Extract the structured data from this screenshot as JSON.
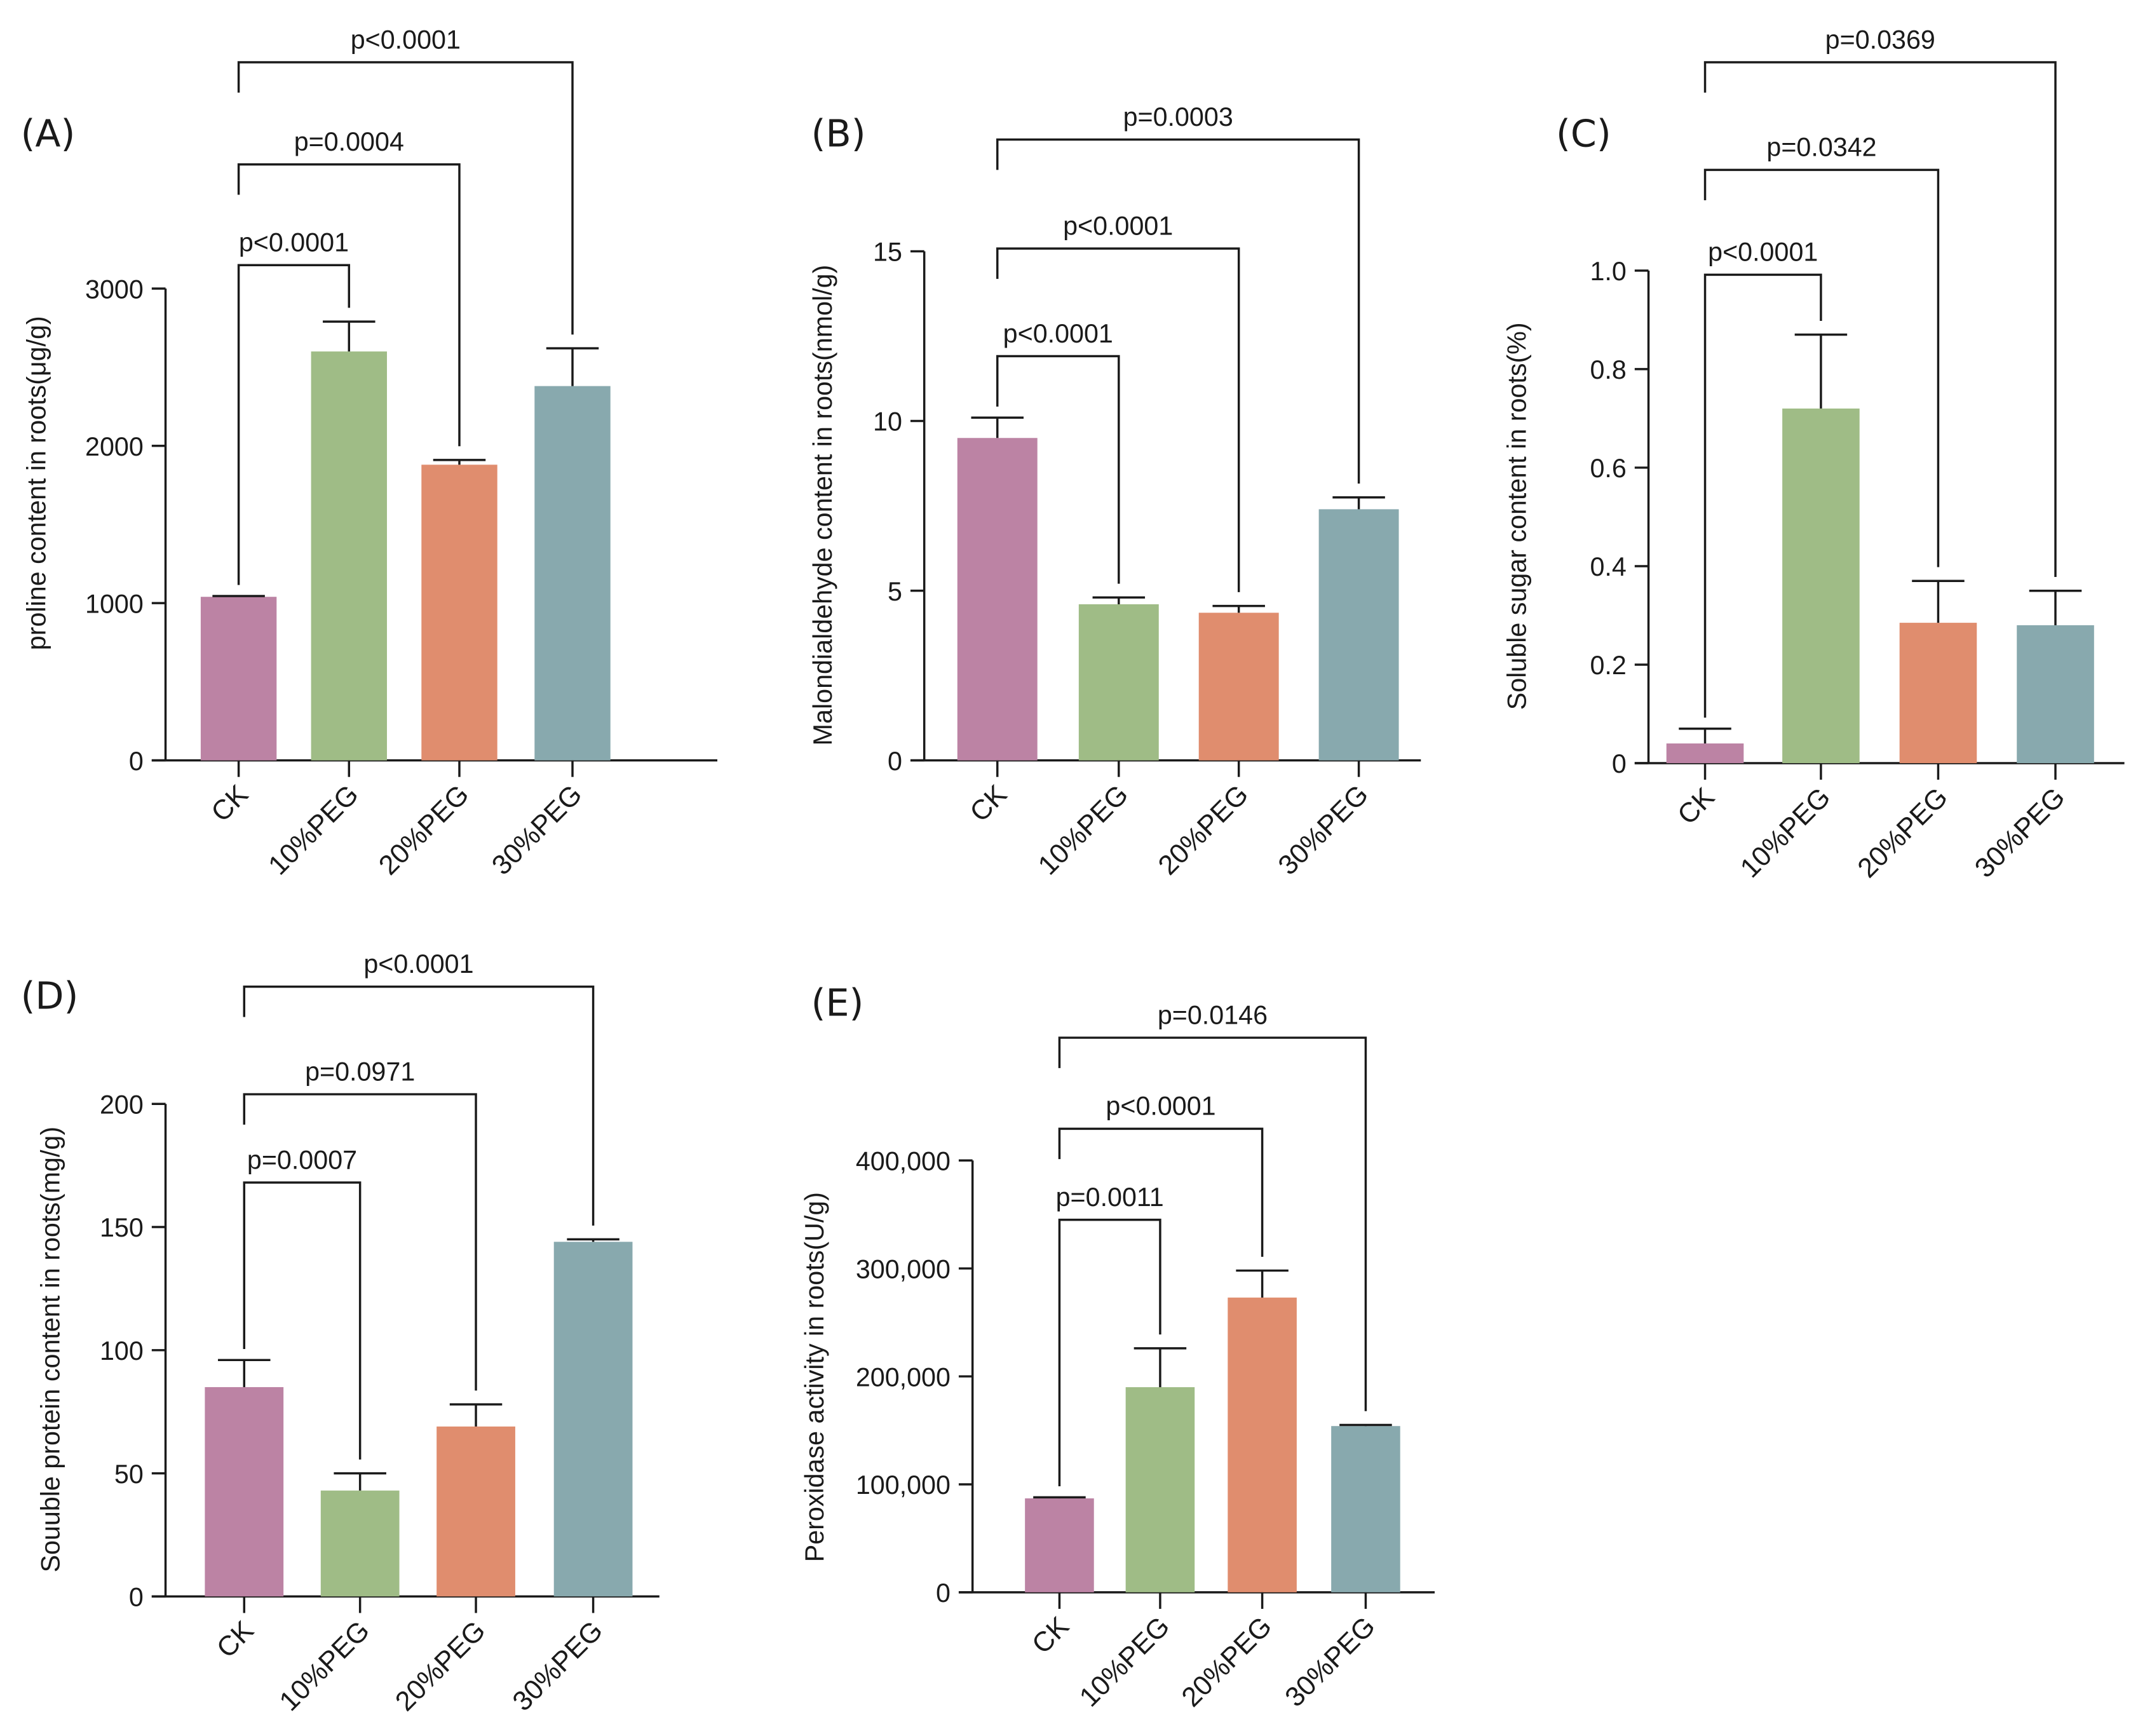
{
  "chart_data": [
    {
      "type": "bar",
      "panel_label": "(A)",
      "ylabel": "proline content in roots(μg/g)",
      "categories": [
        "CK",
        "10%PEG",
        "20%PEG",
        "30%PEG"
      ],
      "values": [
        1040,
        2600,
        1880,
        2380
      ],
      "errors": [
        5,
        190,
        30,
        240
      ],
      "ylim": [
        0,
        3000
      ],
      "yticks": [
        0,
        1000,
        2000,
        3000
      ],
      "ytick_labels": [
        "0",
        "1000",
        "2000",
        "3000"
      ],
      "comparisons": [
        {
          "from": 0,
          "to": 1,
          "label": "p<0.0001"
        },
        {
          "from": 0,
          "to": 2,
          "label": "p=0.0004"
        },
        {
          "from": 0,
          "to": 3,
          "label": "p<0.0001"
        }
      ]
    },
    {
      "type": "bar",
      "panel_label": "(B)",
      "ylabel": "Malondialdehyde content in roots(nmol/g)",
      "categories": [
        "CK",
        "10%PEG",
        "20%PEG",
        "30%PEG"
      ],
      "values": [
        9.5,
        4.6,
        4.35,
        7.4
      ],
      "errors": [
        0.6,
        0.2,
        0.2,
        0.35
      ],
      "ylim": [
        0,
        15
      ],
      "yticks": [
        0,
        5,
        10,
        15
      ],
      "ytick_labels": [
        "0",
        "5",
        "10",
        "15"
      ],
      "comparisons": [
        {
          "from": 0,
          "to": 1,
          "label": "p<0.0001"
        },
        {
          "from": 0,
          "to": 2,
          "label": "p<0.0001"
        },
        {
          "from": 0,
          "to": 3,
          "label": "p=0.0003"
        }
      ]
    },
    {
      "type": "bar",
      "panel_label": "(C)",
      "ylabel": "Soluble sugar content in roots(%)",
      "categories": [
        "CK",
        "10%PEG",
        "20%PEG",
        "30%PEG"
      ],
      "values": [
        0.04,
        0.72,
        0.285,
        0.28
      ],
      "errors": [
        0.03,
        0.15,
        0.085,
        0.07
      ],
      "ylim": [
        0,
        1.0
      ],
      "yticks": [
        0,
        0.2,
        0.4,
        0.6,
        0.8,
        1.0
      ],
      "ytick_labels": [
        "0",
        "0.2",
        "0.4",
        "0.6",
        "0.8",
        "1.0"
      ],
      "comparisons": [
        {
          "from": 0,
          "to": 1,
          "label": "p<0.0001"
        },
        {
          "from": 0,
          "to": 2,
          "label": "p=0.0342"
        },
        {
          "from": 0,
          "to": 3,
          "label": "p=0.0369"
        }
      ]
    },
    {
      "type": "bar",
      "panel_label": "(D)",
      "ylabel": "Souuble protein content in roots(mg/g)",
      "categories": [
        "CK",
        "10%PEG",
        "20%PEG",
        "30%PEG"
      ],
      "values": [
        85,
        43,
        69,
        144
      ],
      "errors": [
        11,
        7,
        9,
        1
      ],
      "ylim": [
        0,
        200
      ],
      "yticks": [
        0,
        50,
        100,
        150,
        200
      ],
      "ytick_labels": [
        "0",
        "50",
        "100",
        "150",
        "200"
      ],
      "comparisons": [
        {
          "from": 0,
          "to": 1,
          "label": "p=0.0007"
        },
        {
          "from": 0,
          "to": 2,
          "label": "p=0.0971"
        },
        {
          "from": 0,
          "to": 3,
          "label": "p<0.0001"
        }
      ]
    },
    {
      "type": "bar",
      "panel_label": "(E)",
      "ylabel": "Peroxidase activity in roots(U/g)",
      "categories": [
        "CK",
        "10%PEG",
        "20%PEG",
        "30%PEG"
      ],
      "values": [
        87000,
        190000,
        273000,
        154000
      ],
      "errors": [
        1000,
        36000,
        25000,
        1000
      ],
      "ylim": [
        0,
        400000
      ],
      "yticks": [
        0,
        100000,
        200000,
        300000,
        400000
      ],
      "ytick_labels": [
        "0",
        "100,000",
        "200,000",
        "300,000",
        "400,000"
      ],
      "comparisons": [
        {
          "from": 0,
          "to": 1,
          "label": "p=0.0011"
        },
        {
          "from": 0,
          "to": 2,
          "label": "p<0.0001"
        },
        {
          "from": 0,
          "to": 3,
          "label": "p=0.0146"
        }
      ]
    }
  ],
  "colors": [
    "#BC83A4",
    "#9FBC86",
    "#E08D6E",
    "#88A9AE"
  ]
}
